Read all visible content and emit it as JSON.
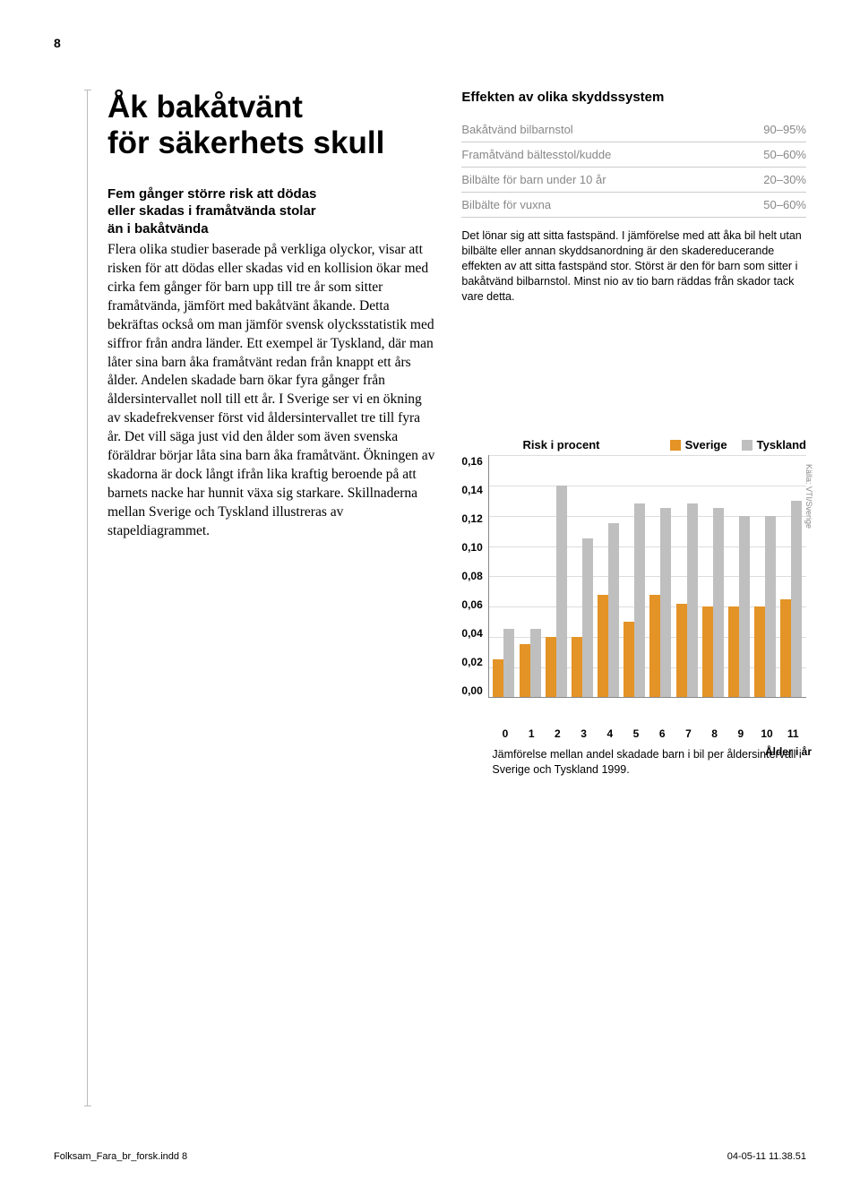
{
  "page_number": "8",
  "heading_line1": "Åk bakåtvänt",
  "heading_line2": "för säkerhets skull",
  "subhead_line1": "Fem gånger större risk att dödas",
  "subhead_line2": "eller skadas i framåtvända stolar",
  "subhead_line3": "än i bakåtvända",
  "body": "Flera olika studier baserade på verkliga olyckor, visar att risken för att dödas eller skadas vid en kollision ökar med cirka fem gånger för barn upp till tre år som sitter framåtvända, jämfört med bakåtvänt åkande. Detta bekräftas också om man jämför svensk olycksstatistik med siffror från andra länder. Ett exempel är Tyskland, där man låter sina barn åka framåtvänt redan från knappt ett års ålder. Andelen skadade barn ökar fyra gånger från åldersintervallet noll till ett år. I Sverige ser vi en ökning av skadefrekvenser först vid åldersintervallet tre till fyra år. Det vill säga just vid den ålder som även svenska föräldrar börjar låta sina barn åka framåtvänt. Ökningen av skadorna är dock långt ifrån lika kraftig beroende på att barnets nacke har hunnit växa sig starkare. Skillnaderna mellan Sverige och Tyskland illustreras av stapeldiagrammet.",
  "effects": {
    "title": "Effekten av olika skyddssystem",
    "rows": [
      {
        "label": "Bakåtvänd bilbarnstol",
        "value": "90–95%"
      },
      {
        "label": "Framåtvänd bältesstol/kudde",
        "value": "50–60%"
      },
      {
        "label": "Bilbälte för barn under 10 år",
        "value": "20–30%"
      },
      {
        "label": "Bilbälte för vuxna",
        "value": "50–60%"
      }
    ],
    "note": "Det lönar sig att sitta fastspänd. I jämförelse med att åka bil helt utan bilbälte eller annan skyddsanordning är den skadereducerande effekten av att sitta fastspänd stor. Störst är den för barn som sitter i bakåtvänd bilbarnstol. Minst nio av tio barn räddas från skador tack vare detta."
  },
  "chart": {
    "type": "bar",
    "title": "Risk i procent",
    "legend": [
      {
        "label": "Sverige",
        "color": "#e49326"
      },
      {
        "label": "Tyskland",
        "color": "#bfbfbf"
      }
    ],
    "y_ticks": [
      "0,16",
      "0,14",
      "0,12",
      "0,10",
      "0,08",
      "0,06",
      "0,04",
      "0,02",
      "0,00"
    ],
    "y_max": 0.16,
    "categories": [
      "0",
      "1",
      "2",
      "3",
      "4",
      "5",
      "6",
      "7",
      "8",
      "9",
      "10",
      "11"
    ],
    "series": {
      "sverige": [
        0.025,
        0.035,
        0.04,
        0.04,
        0.068,
        0.05,
        0.068,
        0.062,
        0.06,
        0.06,
        0.06,
        0.065
      ],
      "tyskland": [
        0.045,
        0.045,
        0.14,
        0.105,
        0.115,
        0.128,
        0.125,
        0.128,
        0.125,
        0.12,
        0.12,
        0.13
      ]
    },
    "colors": {
      "sverige": "#e49326",
      "tyskland": "#bfbfbf"
    },
    "grid_color": "#dddddd",
    "x_axis_label": "Ålder i år",
    "source": "Källa: VTI/Sverige",
    "caption": "Jämförelse mellan andel skadade barn i bil per åldersintervall i Sverige och Tyskland 1999."
  },
  "footer": {
    "left": "Folksam_Fara_br_forsk.indd   8",
    "right": "04-05-11   11.38.51"
  }
}
